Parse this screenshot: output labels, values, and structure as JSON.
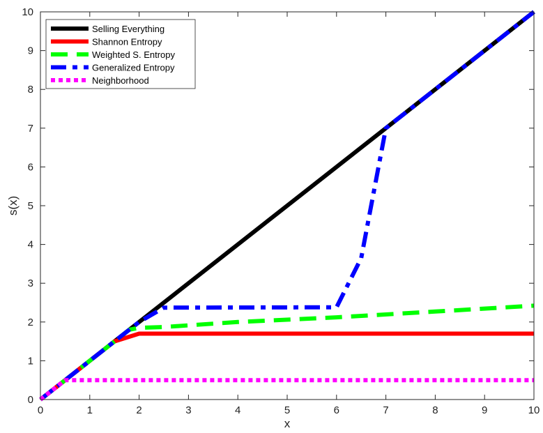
{
  "chart_data": {
    "type": "line",
    "xlabel": "x",
    "ylabel": "s(x)",
    "xlim": [
      0,
      10
    ],
    "ylim": [
      0,
      10
    ],
    "xticks": [
      0,
      1,
      2,
      3,
      4,
      5,
      6,
      7,
      8,
      9,
      10
    ],
    "yticks": [
      0,
      1,
      2,
      3,
      4,
      5,
      6,
      7,
      8,
      9,
      10
    ],
    "grid": false,
    "legend_position": "top-left",
    "series": [
      {
        "name": "Selling Everything",
        "color": "#000000",
        "style": "solid",
        "x": [
          0,
          10
        ],
        "y": [
          0,
          10
        ]
      },
      {
        "name": "Shannon Entropy",
        "color": "#ff0000",
        "style": "solid",
        "x": [
          0,
          1.5,
          2,
          10
        ],
        "y": [
          0,
          1.5,
          1.7,
          1.7
        ]
      },
      {
        "name": "Weighted S. Entropy",
        "color": "#00ff00",
        "style": "dashed",
        "x": [
          0,
          1.8,
          2,
          2.5,
          4,
          6,
          8,
          10
        ],
        "y": [
          0,
          1.8,
          1.85,
          1.87,
          2.0,
          2.12,
          2.27,
          2.42
        ]
      },
      {
        "name": "Generalized Entropy",
        "color": "#0000ff",
        "style": "dashdot",
        "x": [
          0,
          2,
          2.5,
          6,
          6.5,
          7,
          10
        ],
        "y": [
          0,
          2,
          2.37,
          2.38,
          3.65,
          7,
          10
        ]
      },
      {
        "name": "Neighborhood",
        "color": "#ff00ff",
        "style": "dotted",
        "x": [
          0,
          0.5,
          10
        ],
        "y": [
          0,
          0.5,
          0.5
        ]
      }
    ]
  }
}
